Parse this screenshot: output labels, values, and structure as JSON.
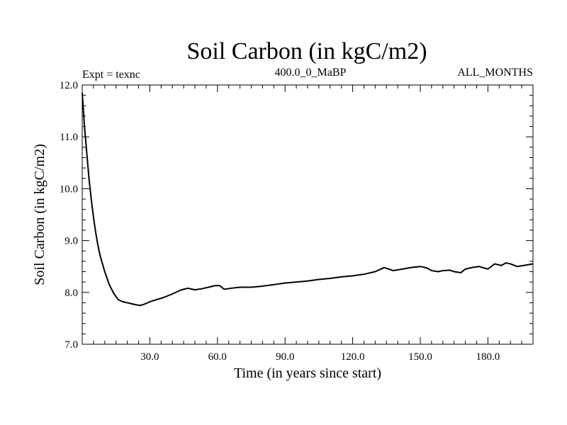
{
  "chart_data": {
    "type": "line",
    "title": "Soil Carbon (in kgC/m2)",
    "subtitle_left": "Expt = texnc",
    "subtitle_center": "400.0_0_MaBP",
    "subtitle_right": "ALL_MONTHS",
    "xlabel": "Time (in years since start)",
    "ylabel": "Soil Carbon (in kgC/m2)",
    "xlim": [
      0,
      200
    ],
    "ylim": [
      7.0,
      12.0
    ],
    "xticks": [
      30,
      60,
      90,
      120,
      150,
      180
    ],
    "xtick_labels": [
      "30.0",
      "60.0",
      "90.0",
      "120.0",
      "150.0",
      "180.0"
    ],
    "yticks": [
      7,
      8,
      9,
      10,
      11,
      12
    ],
    "ytick_labels": [
      "7.0",
      "8.0",
      "9.0",
      "10.0",
      "11.0",
      "12.0"
    ],
    "series": [
      {
        "name": "Soil Carbon",
        "color": "#000000",
        "x": [
          0,
          1,
          2,
          3,
          4,
          5,
          6,
          7,
          8,
          10,
          12,
          14,
          16,
          18,
          20,
          22,
          24,
          26,
          28,
          30,
          33,
          36,
          40,
          44,
          47,
          50,
          53,
          56,
          59,
          61,
          63,
          66,
          70,
          75,
          80,
          85,
          90,
          95,
          100,
          105,
          110,
          115,
          120,
          125,
          130,
          134,
          138,
          142,
          146,
          150,
          153,
          155,
          158,
          160,
          163,
          165,
          168,
          170,
          173,
          176,
          180,
          183,
          186,
          188,
          190,
          193,
          196,
          200
        ],
        "y": [
          11.85,
          11.2,
          10.7,
          10.2,
          9.8,
          9.45,
          9.15,
          8.9,
          8.7,
          8.4,
          8.15,
          7.98,
          7.86,
          7.82,
          7.8,
          7.78,
          7.76,
          7.75,
          7.78,
          7.82,
          7.86,
          7.9,
          7.97,
          8.05,
          8.08,
          8.05,
          8.07,
          8.1,
          8.13,
          8.13,
          8.06,
          8.08,
          8.1,
          8.1,
          8.12,
          8.15,
          8.18,
          8.2,
          8.22,
          8.25,
          8.27,
          8.3,
          8.32,
          8.35,
          8.4,
          8.48,
          8.42,
          8.45,
          8.48,
          8.5,
          8.47,
          8.42,
          8.4,
          8.42,
          8.43,
          8.4,
          8.38,
          8.45,
          8.48,
          8.5,
          8.45,
          8.55,
          8.52,
          8.57,
          8.55,
          8.5,
          8.52,
          8.55
        ]
      }
    ]
  }
}
